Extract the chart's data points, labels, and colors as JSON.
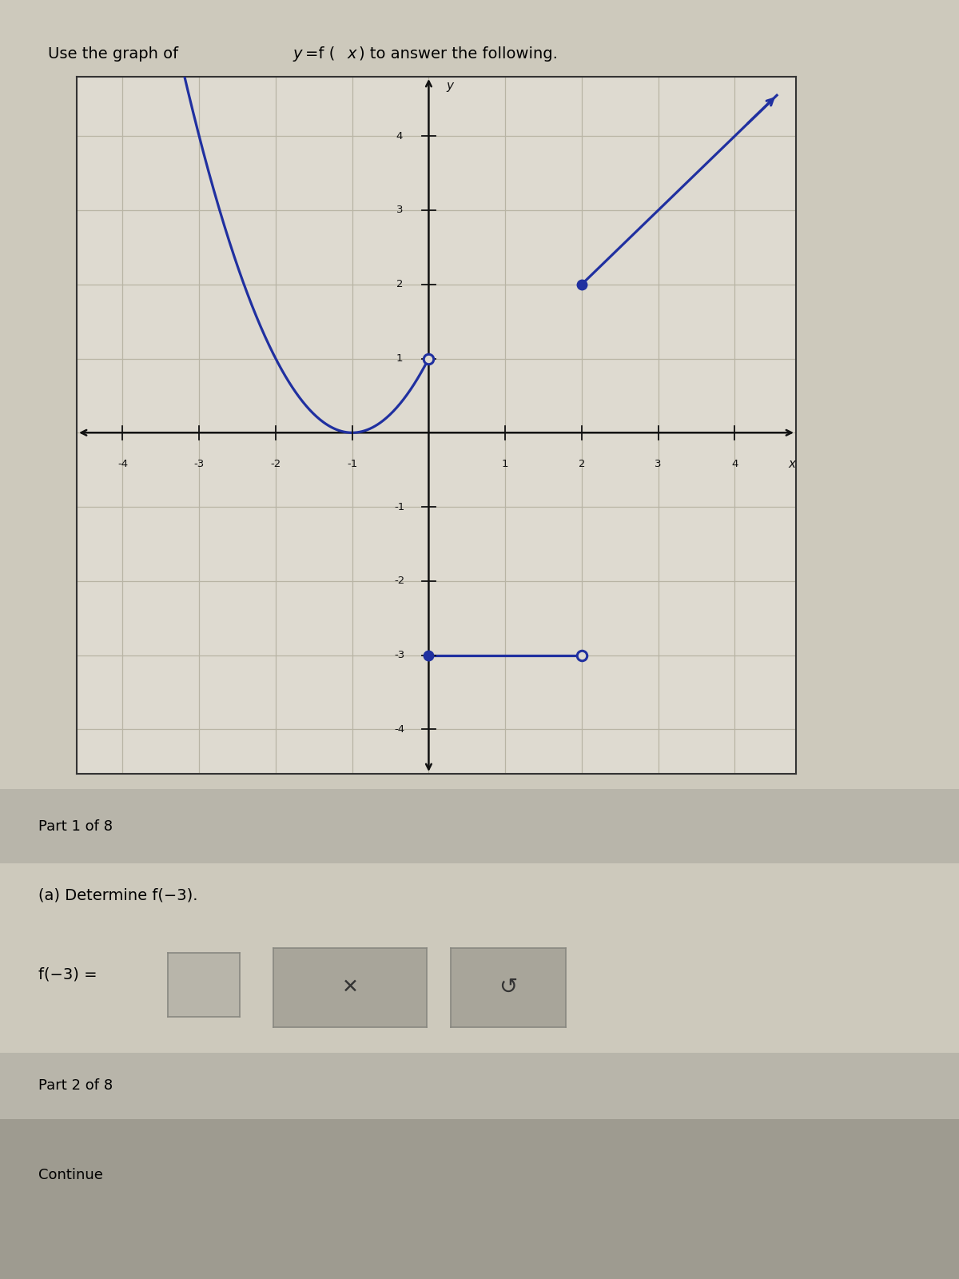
{
  "title_plain": "Use the graph of ",
  "title_yfx": "y",
  "title_eq": "=f (",
  "title_x": "x",
  "title_rest": ") to answer the following.",
  "bg_color": "#cdc9bc",
  "graph_bg": "#dedad0",
  "grid_color": "#b8b4a4",
  "curve_color": "#2030a0",
  "dot_color": "#2030a0",
  "axis_color": "#111111",
  "xmin": -4.6,
  "xmax": 4.8,
  "ymin": -4.6,
  "ymax": 4.8,
  "xticks": [
    -4,
    -3,
    -2,
    -1,
    1,
    2,
    3,
    4
  ],
  "yticks": [
    -4,
    -3,
    -2,
    -1,
    1,
    2,
    3,
    4
  ],
  "part1_text": "Part 1 of 8",
  "part1a_text": "(a) Determine f(−3).",
  "answer_label": "f(−3) =",
  "part2_text": "Part 2 of 8",
  "continue_text": "Continue",
  "panel1_color": "#b8b5aa",
  "qa_bg": "#cdc9bc",
  "box_color": "#b8b5aa",
  "btn_color": "#a8a59a",
  "panel2_color": "#9e9b90"
}
